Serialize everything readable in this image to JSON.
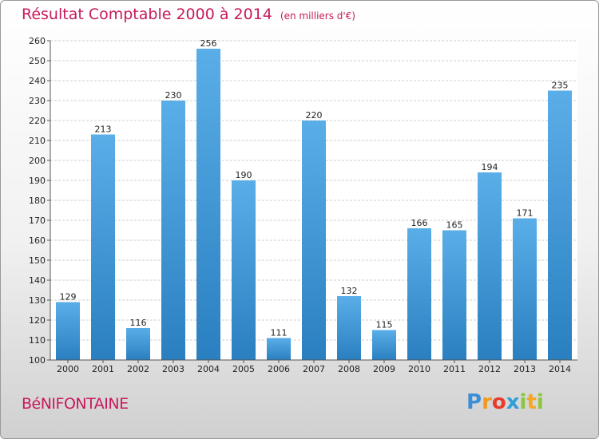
{
  "chart_data": {
    "type": "bar",
    "title": "Résultat Comptable 2000 à 2014",
    "subtitle": "(en milliers d'€)",
    "categories": [
      "2000",
      "2001",
      "2002",
      "2003",
      "2004",
      "2005",
      "2006",
      "2007",
      "2008",
      "2009",
      "2010",
      "2011",
      "2012",
      "2013",
      "2014"
    ],
    "values": [
      129,
      213,
      116,
      230,
      256,
      190,
      111,
      220,
      132,
      115,
      166,
      165,
      194,
      171,
      235
    ],
    "ylim": [
      100,
      260
    ],
    "yticks": [
      100,
      110,
      120,
      130,
      140,
      150,
      160,
      170,
      180,
      190,
      200,
      210,
      220,
      230,
      240,
      250,
      260
    ],
    "grid": true,
    "xlabel": "",
    "ylabel": ""
  },
  "footer": {
    "commune": "BéNIFONTAINE",
    "logo_letters": [
      "P",
      "r",
      "o",
      "x",
      "i",
      "t",
      "i"
    ],
    "logo_colors": [
      "#3b8fd6",
      "#f29a1e",
      "#e83b2e",
      "#2f9fd8",
      "#8cc63f",
      "#f5a623",
      "#8cc63f"
    ]
  },
  "colors": {
    "accent": "#c8195c",
    "bar_top": "#5aaee8",
    "bar_bottom": "#2a7fc0",
    "grid": "#cfcfcf"
  }
}
